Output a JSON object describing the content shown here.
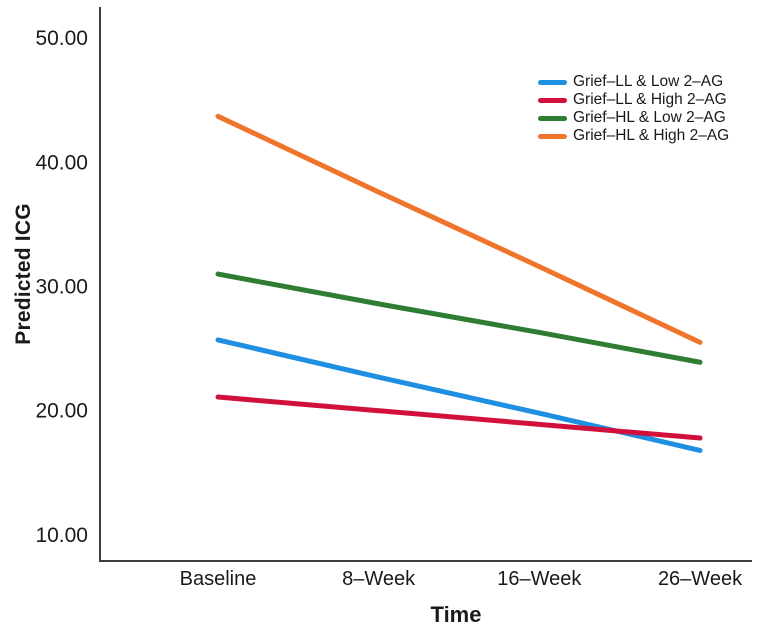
{
  "figure": {
    "background": "#ffffff",
    "axis_color": "#3d3d3d",
    "text_color": "#1a1a1a"
  },
  "chart_data": {
    "type": "line",
    "title": "",
    "xlabel": "Time",
    "ylabel": "Predicted ICG",
    "categories": [
      "Baseline",
      "8–Week",
      "16–Week",
      "26–Week"
    ],
    "y_tick_values": [
      10,
      20,
      30,
      40,
      50
    ],
    "y_tick_labels": [
      "10.00",
      "20.00",
      "30.00",
      "40.00",
      "50.00"
    ],
    "ylim": [
      7.9,
      52.5
    ],
    "grid": false,
    "legend_position": "top-right-inside",
    "line_width": 5,
    "series": [
      {
        "name": "Grief–LL & Low 2–AG",
        "color": "#1F8FE1",
        "values": [
          25.7,
          22.7,
          19.8,
          16.8
        ]
      },
      {
        "name": "Grief–LL & High 2–AG",
        "color": "#D1103C",
        "values": [
          21.1,
          20.0,
          18.9,
          17.8
        ]
      },
      {
        "name": "Grief–HL & Low 2–AG",
        "color": "#2E7D32",
        "values": [
          31.0,
          28.6,
          26.3,
          23.9
        ]
      },
      {
        "name": "Grief–HL & High 2–AG",
        "color": "#F0742C",
        "values": [
          43.7,
          37.6,
          31.6,
          25.5
        ]
      }
    ]
  }
}
